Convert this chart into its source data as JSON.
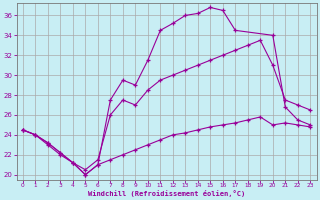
{
  "xlabel": "Windchill (Refroidissement éolien,°C)",
  "background_color": "#c8eef4",
  "line_color": "#990099",
  "xlim": [
    -0.5,
    23.5
  ],
  "ylim": [
    19.5,
    37.2
  ],
  "xticks": [
    0,
    1,
    2,
    3,
    4,
    5,
    6,
    7,
    8,
    9,
    10,
    11,
    12,
    13,
    14,
    15,
    16,
    17,
    18,
    19,
    20,
    21,
    22,
    23
  ],
  "yticks": [
    20,
    22,
    24,
    26,
    28,
    30,
    32,
    34,
    36
  ],
  "grid_color": "#aaaaaa",
  "series": [
    {
      "x": [
        0,
        1,
        2,
        3,
        4,
        5,
        6,
        7,
        8,
        9,
        10,
        11,
        12,
        13,
        14,
        15,
        16,
        17,
        20,
        21,
        22,
        23
      ],
      "y": [
        24.5,
        24.0,
        23.2,
        22.2,
        21.2,
        20.0,
        21.0,
        27.5,
        29.5,
        29.0,
        31.5,
        34.5,
        35.2,
        36.0,
        36.2,
        36.8,
        36.5,
        34.5,
        34.0,
        26.8,
        25.5,
        25.0
      ]
    },
    {
      "x": [
        0,
        1,
        2,
        3,
        4,
        5,
        6,
        7,
        8,
        9,
        10,
        11,
        12,
        13,
        14,
        15,
        16,
        17,
        18,
        19,
        20,
        21,
        22,
        23
      ],
      "y": [
        24.5,
        24.0,
        23.2,
        22.2,
        21.2,
        20.5,
        21.5,
        26.0,
        27.5,
        27.0,
        28.5,
        29.5,
        30.0,
        30.5,
        31.0,
        31.5,
        32.0,
        32.5,
        33.0,
        33.5,
        31.0,
        27.5,
        27.0,
        26.5
      ]
    },
    {
      "x": [
        0,
        1,
        2,
        3,
        4,
        5,
        6,
        7,
        8,
        9,
        10,
        11,
        12,
        13,
        14,
        15,
        16,
        17,
        18,
        19,
        20,
        21,
        22,
        23
      ],
      "y": [
        24.5,
        24.0,
        23.0,
        22.0,
        21.2,
        20.0,
        21.0,
        21.5,
        22.0,
        22.5,
        23.0,
        23.5,
        24.0,
        24.2,
        24.5,
        24.8,
        25.0,
        25.2,
        25.5,
        25.8,
        25.0,
        25.2,
        25.0,
        24.8
      ]
    }
  ]
}
